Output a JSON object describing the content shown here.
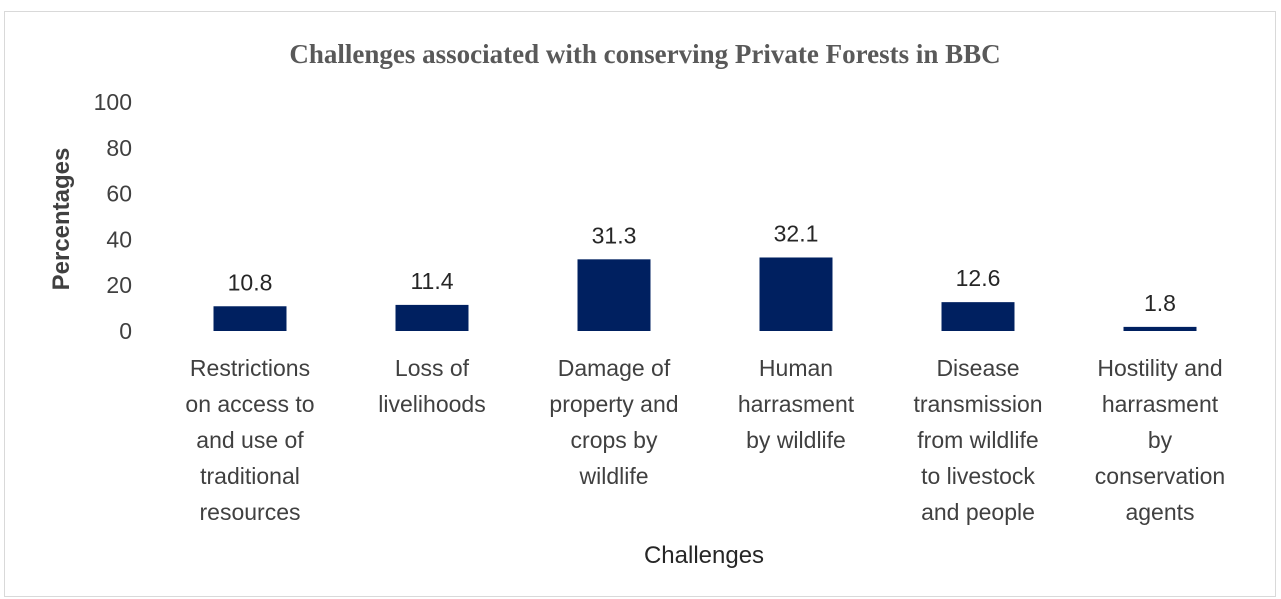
{
  "chart_data": {
    "type": "bar",
    "title": "Challenges associated with conserving Private Forests in BBC",
    "xlabel": "Challenges",
    "ylabel": "Percentages",
    "ylim": [
      0,
      100
    ],
    "yticks": [
      0,
      20,
      40,
      60,
      80,
      100
    ],
    "grid": false,
    "legend": "none",
    "bar_color": "#002060",
    "categories": [
      "Restrictions on access to and use of traditional resources",
      "Loss of livelihoods",
      "Damage of property and crops by wildlife",
      "Human harrasment by wildlife",
      "Disease transmission from wildlife to livestock and people",
      "Hostility and harrasment by conservation agents"
    ],
    "category_lines": [
      [
        "Restrictions",
        "on access to",
        "and use of",
        "traditional",
        "resources"
      ],
      [
        "Loss of",
        "livelihoods"
      ],
      [
        "Damage of",
        "property and",
        "crops by",
        "wildlife"
      ],
      [
        "Human",
        "harrasment",
        "by wildlife"
      ],
      [
        "Disease",
        "transmission",
        "from wildlife",
        "to livestock",
        "and people"
      ],
      [
        "Hostility and",
        "harrasment",
        "by",
        "conservation",
        "agents"
      ]
    ],
    "values": [
      10.8,
      11.4,
      31.3,
      32.1,
      12.6,
      1.8
    ],
    "data_labels": [
      "10.8",
      "11.4",
      "31.3",
      "32.1",
      "12.6",
      "1.8"
    ]
  }
}
